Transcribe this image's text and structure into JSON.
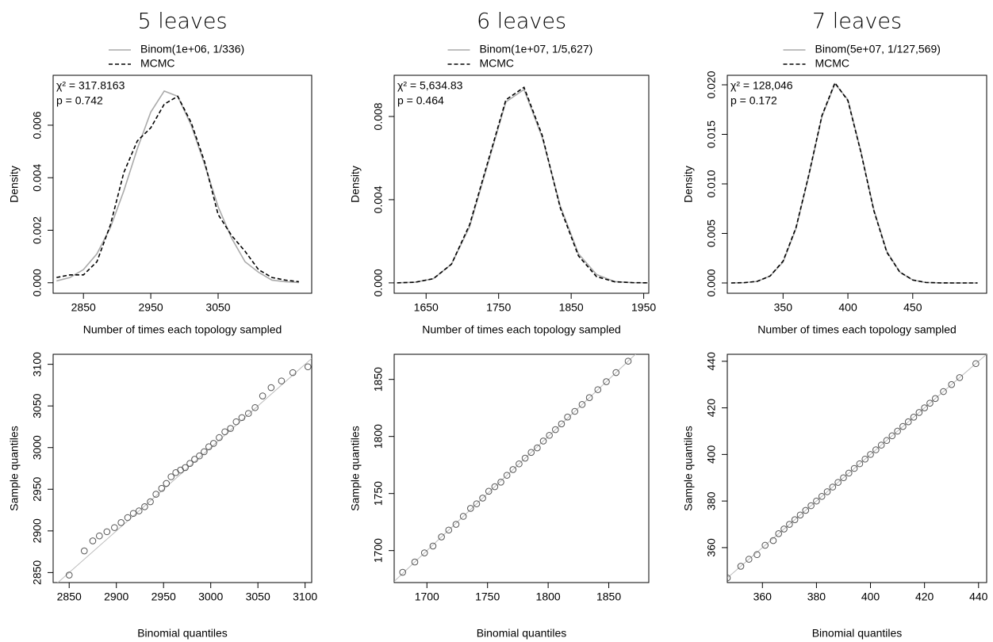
{
  "chart_data": [
    {
      "type": "line",
      "title": "5 leaves",
      "xlabel": "Number of times each topology sampled",
      "ylabel": "Density",
      "stats": [
        "χ² = 317.8163",
        "p = 0.742"
      ],
      "x": [
        2810,
        2830,
        2850,
        2870,
        2890,
        2910,
        2930,
        2950,
        2970,
        2990,
        3010,
        3030,
        3050,
        3070,
        3090,
        3110,
        3130,
        3150,
        3170
      ],
      "series": [
        {
          "name": "Binom(1e+06, 1/336)",
          "color": "#aaaaaa",
          "dash": false,
          "values": [
            7e-05,
            0.0002,
            0.0005,
            0.0011,
            0.0021,
            0.0035,
            0.0051,
            0.0065,
            0.0073,
            0.0071,
            0.006,
            0.0045,
            0.0029,
            0.0017,
            0.0008,
            0.0004,
            0.0001,
            4e-05,
            1e-05
          ]
        },
        {
          "name": "MCMC",
          "color": "#000000",
          "dash": true,
          "values": [
            0.0002,
            0.0003,
            0.0003,
            0.0008,
            0.0022,
            0.0042,
            0.0054,
            0.0059,
            0.0068,
            0.0071,
            0.0061,
            0.0046,
            0.0026,
            0.0018,
            0.0012,
            0.0005,
            0.0002,
            0.0001,
            4e-05
          ]
        }
      ],
      "xlim": [
        2805,
        3189
      ],
      "xticks": [
        2850,
        2950,
        3050
      ],
      "ylim": [
        -0.0004,
        0.0079
      ],
      "yticks": [
        {
          "value": 0,
          "label": "0.000"
        },
        {
          "value": 0.002,
          "label": "0.002"
        },
        {
          "value": 0.004,
          "label": "0.004"
        },
        {
          "value": 0.006,
          "label": "0.006"
        }
      ]
    },
    {
      "type": "line",
      "title": "6 leaves",
      "xlabel": "Number of times each topology sampled",
      "ylabel": "Density",
      "stats": [
        "χ² = 5,634.83",
        "p = 0.464"
      ],
      "x": [
        1610,
        1635,
        1660,
        1685,
        1710,
        1735,
        1760,
        1785,
        1810,
        1835,
        1860,
        1885,
        1910,
        1935,
        1960
      ],
      "series": [
        {
          "name": "Binom(1e+07, 1/5,627)",
          "color": "#aaaaaa",
          "dash": false,
          "values": [
            0,
            3e-05,
            0.0002,
            0.0009,
            0.0027,
            0.0057,
            0.0087,
            0.0093,
            0.007,
            0.0037,
            0.0014,
            0.0004,
            6e-05,
            1e-05,
            0
          ]
        },
        {
          "name": "MCMC",
          "color": "#000000",
          "dash": true,
          "values": [
            0,
            3e-05,
            0.0002,
            0.0009,
            0.0028,
            0.0058,
            0.0088,
            0.0094,
            0.0071,
            0.0036,
            0.0013,
            0.0003,
            5e-05,
            1e-05,
            0
          ]
        }
      ],
      "xlim": [
        1606,
        1957
      ],
      "xticks": [
        1650,
        1750,
        1850,
        1950
      ],
      "ylim": [
        -0.0005,
        0.00998
      ],
      "yticks": [
        {
          "value": 0,
          "label": "0.000"
        },
        {
          "value": 0.004,
          "label": "0.004"
        },
        {
          "value": 0.008,
          "label": "0.008"
        }
      ]
    },
    {
      "type": "line",
      "title": "7 leaves",
      "xlabel": "Number of times each topology sampled",
      "ylabel": "Density",
      "stats": [
        "χ² = 128,046",
        "p = 0.172"
      ],
      "x": [
        310,
        320,
        330,
        340,
        350,
        360,
        370,
        380,
        390,
        400,
        410,
        420,
        430,
        440,
        450,
        460,
        470,
        480,
        490,
        500
      ],
      "series": [
        {
          "name": "Binom(5e+07, 1/127,569)",
          "color": "#aaaaaa",
          "dash": false,
          "values": [
            0,
            3e-05,
            0.00015,
            0.0007,
            0.0021,
            0.0055,
            0.0109,
            0.0168,
            0.0201,
            0.0185,
            0.0133,
            0.0074,
            0.0032,
            0.0011,
            0.0003,
            5e-05,
            1e-05,
            0,
            0,
            0
          ]
        },
        {
          "name": "MCMC",
          "color": "#000000",
          "dash": true,
          "values": [
            0,
            3e-05,
            0.00016,
            0.0007,
            0.0022,
            0.0056,
            0.011,
            0.0169,
            0.0202,
            0.0184,
            0.0132,
            0.0073,
            0.0031,
            0.0011,
            0.0003,
            5e-05,
            1e-05,
            0,
            0,
            0
          ]
        }
      ],
      "xlim": [
        307,
        507
      ],
      "xticks": [
        350,
        400,
        450
      ],
      "ylim": [
        -0.00104,
        0.02096
      ],
      "yticks": [
        {
          "value": 0,
          "label": "0.000"
        },
        {
          "value": 0.005,
          "label": "0.005"
        },
        {
          "value": 0.01,
          "label": "0.010"
        },
        {
          "value": 0.015,
          "label": "0.015"
        },
        {
          "value": 0.02,
          "label": "0.020"
        }
      ]
    },
    {
      "type": "scatter",
      "xlabel": "Binomial quantiles",
      "ylabel": "Sample quantiles",
      "x": [
        2850,
        2866,
        2875,
        2882,
        2890,
        2898,
        2905,
        2912,
        2918,
        2924,
        2930,
        2936,
        2942,
        2948,
        2953,
        2958,
        2963,
        2968,
        2973,
        2978,
        2983,
        2988,
        2993,
        2998,
        3003,
        3009,
        3015,
        3021,
        3027,
        3033,
        3040,
        3047,
        3055,
        3064,
        3075,
        3087,
        3103
      ],
      "values": [
        2847,
        2876,
        2888,
        2894,
        2899,
        2904,
        2910,
        2916,
        2921,
        2924,
        2929,
        2935,
        2944,
        2951,
        2957,
        2965,
        2970,
        2973,
        2976,
        2981,
        2986,
        2990,
        2995,
        3001,
        3005,
        3012,
        3019,
        3023,
        3031,
        3036,
        3041,
        3048,
        3062,
        3072,
        3080,
        3090,
        3097
      ],
      "xlim": [
        2833,
        3107
      ],
      "xticks": [
        2850,
        2900,
        2950,
        3000,
        3050,
        3100
      ],
      "ylim": [
        2838,
        3112
      ],
      "yticks": [
        2850,
        2900,
        2950,
        3000,
        3050,
        3100
      ]
    },
    {
      "type": "scatter",
      "xlabel": "Binomial quantiles",
      "ylabel": "Sample quantiles",
      "x": [
        1680,
        1690,
        1698,
        1705,
        1712,
        1718,
        1724,
        1730,
        1736,
        1741,
        1746,
        1751,
        1756,
        1761,
        1766,
        1771,
        1776,
        1781,
        1786,
        1791,
        1796,
        1801,
        1806,
        1811,
        1816,
        1822,
        1828,
        1834,
        1841,
        1848,
        1856,
        1866,
        1878
      ],
      "values": [
        1681,
        1690,
        1698,
        1704,
        1712,
        1718,
        1723,
        1730,
        1737,
        1741,
        1746,
        1752,
        1756,
        1760,
        1766,
        1771,
        1776,
        1781,
        1786,
        1790,
        1796,
        1801,
        1806,
        1811,
        1817,
        1822,
        1828,
        1834,
        1841,
        1848,
        1856,
        1866,
        1876
      ],
      "xlim": [
        1673,
        1883
      ],
      "xticks": [
        1700,
        1750,
        1800,
        1850
      ],
      "ylim": [
        1672,
        1872
      ],
      "yticks": [
        1700,
        1750,
        1800,
        1850
      ]
    },
    {
      "type": "scatter",
      "xlabel": "Binomial quantiles",
      "ylabel": "Sample quantiles",
      "x": [
        347,
        352,
        355,
        358,
        361,
        364,
        366,
        368,
        370,
        372,
        374,
        376,
        378,
        380,
        382,
        384,
        386,
        388,
        390,
        392,
        394,
        396,
        398,
        400,
        402,
        404,
        406,
        408,
        410,
        412,
        414,
        416,
        418,
        420,
        422,
        424,
        427,
        430,
        433,
        439
      ],
      "values": [
        347,
        352,
        355,
        357,
        361,
        363,
        366,
        368,
        370,
        372,
        374,
        376,
        378,
        380,
        382,
        384,
        386,
        388,
        390,
        392,
        394,
        396,
        398,
        400,
        402,
        404,
        406,
        408,
        410,
        412,
        414,
        416,
        418,
        420,
        422,
        424,
        427,
        430,
        433,
        439
      ],
      "xlim": [
        347,
        443
      ],
      "xticks": [
        360,
        380,
        400,
        420,
        440
      ],
      "ylim": [
        345,
        443
      ],
      "yticks": [
        360,
        380,
        400,
        420,
        440
      ]
    }
  ]
}
